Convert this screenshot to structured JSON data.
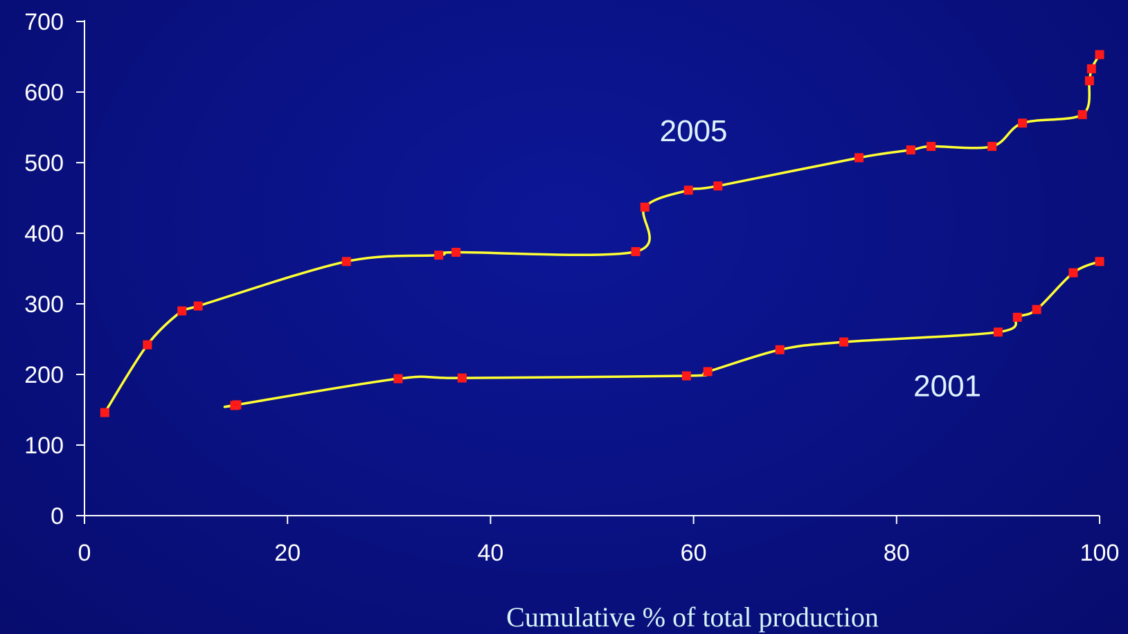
{
  "chart_data": {
    "type": "line",
    "title": "",
    "xlabel": "Cumulative % of total production",
    "ylabel": "",
    "xlim": [
      0,
      100
    ],
    "ylim": [
      0,
      700
    ],
    "x_ticks": [
      0,
      20,
      40,
      60,
      80,
      100
    ],
    "y_ticks": [
      0,
      100,
      200,
      300,
      400,
      500,
      600,
      700
    ],
    "grid": false,
    "colors": {
      "background": "#0a1285",
      "line": "#ffff33",
      "marker": "#ff1a1a",
      "axis": "#ffffff",
      "text": "#ffffff"
    },
    "series": [
      {
        "name": "2005",
        "label_at": [
          60,
          545
        ],
        "points": [
          [
            2,
            146
          ],
          [
            6.2,
            242
          ],
          [
            9.6,
            290
          ],
          [
            11.2,
            297
          ],
          [
            25.8,
            360
          ],
          [
            34.9,
            369
          ],
          [
            36.6,
            373
          ],
          [
            54.3,
            374
          ],
          [
            55.2,
            437
          ],
          [
            59.5,
            461
          ],
          [
            62.4,
            467
          ],
          [
            76.3,
            507
          ],
          [
            81.4,
            518
          ],
          [
            83.4,
            523
          ],
          [
            89.4,
            523
          ],
          [
            92.4,
            556
          ],
          [
            98.3,
            568
          ],
          [
            99.0,
            616
          ],
          [
            99.2,
            633
          ],
          [
            100,
            653
          ]
        ]
      },
      {
        "name": "2001",
        "label_at": [
          85,
          184
        ],
        "points": [
          [
            14.8,
            156
          ],
          [
            15.0,
            157
          ],
          [
            30.9,
            194
          ],
          [
            37.2,
            195
          ],
          [
            59.3,
            198
          ],
          [
            61.4,
            204
          ],
          [
            68.5,
            235
          ],
          [
            74.8,
            246
          ],
          [
            90.0,
            260
          ],
          [
            91.9,
            281
          ],
          [
            93.8,
            292
          ],
          [
            97.4,
            344
          ],
          [
            100,
            360
          ]
        ]
      }
    ]
  }
}
